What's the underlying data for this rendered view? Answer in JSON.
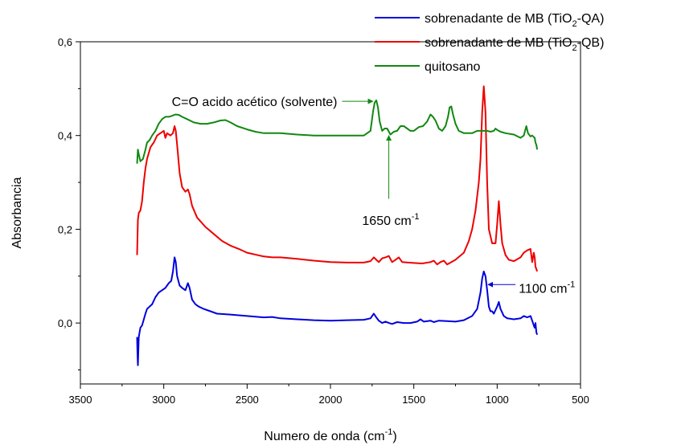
{
  "chart_data": {
    "type": "line",
    "title": "",
    "xlabel": {
      "main": "Numero de onda (cm",
      "sup": "-1",
      "end": ")"
    },
    "ylabel": "Absorbancia",
    "xlim": [
      3500,
      500
    ],
    "ylim": [
      -0.13,
      0.6
    ],
    "x_reversed": true,
    "x_ticks": [
      3500,
      3000,
      2500,
      2000,
      1500,
      1000,
      500
    ],
    "x_tick_labels": [
      "3500",
      "3000",
      "2500",
      "2000",
      "1500",
      "1000",
      "500"
    ],
    "y_ticks": [
      0.0,
      0.2,
      0.4,
      0.6
    ],
    "y_tick_labels": [
      "0,0",
      "0,2",
      "0,4",
      "0,6"
    ],
    "grid": false,
    "legend_position": "top-right",
    "series": [
      {
        "name": {
          "pre": "sobrenadante de MB (TiO",
          "sub": "2",
          "post": "-QA)"
        },
        "color": "#0000dd",
        "points": [
          [
            3160,
            -0.03
          ],
          [
            3158,
            -0.06
          ],
          [
            3155,
            -0.09
          ],
          [
            3150,
            -0.03
          ],
          [
            3140,
            -0.01
          ],
          [
            3130,
            -0.005
          ],
          [
            3110,
            0.02
          ],
          [
            3100,
            0.03
          ],
          [
            3085,
            0.035
          ],
          [
            3070,
            0.04
          ],
          [
            3050,
            0.055
          ],
          [
            3030,
            0.065
          ],
          [
            3010,
            0.07
          ],
          [
            2990,
            0.075
          ],
          [
            2970,
            0.085
          ],
          [
            2955,
            0.09
          ],
          [
            2945,
            0.11
          ],
          [
            2935,
            0.14
          ],
          [
            2928,
            0.13
          ],
          [
            2920,
            0.1
          ],
          [
            2905,
            0.08
          ],
          [
            2890,
            0.075
          ],
          [
            2870,
            0.07
          ],
          [
            2855,
            0.085
          ],
          [
            2845,
            0.075
          ],
          [
            2830,
            0.05
          ],
          [
            2810,
            0.04
          ],
          [
            2790,
            0.035
          ],
          [
            2760,
            0.03
          ],
          [
            2720,
            0.025
          ],
          [
            2680,
            0.02
          ],
          [
            2600,
            0.018
          ],
          [
            2500,
            0.015
          ],
          [
            2400,
            0.012
          ],
          [
            2350,
            0.013
          ],
          [
            2300,
            0.01
          ],
          [
            2200,
            0.008
          ],
          [
            2100,
            0.006
          ],
          [
            2000,
            0.005
          ],
          [
            1900,
            0.006
          ],
          [
            1800,
            0.007
          ],
          [
            1760,
            0.01
          ],
          [
            1740,
            0.02
          ],
          [
            1725,
            0.012
          ],
          [
            1710,
            0.005
          ],
          [
            1690,
            0.0
          ],
          [
            1670,
            0.003
          ],
          [
            1650,
            0.0
          ],
          [
            1630,
            -0.002
          ],
          [
            1600,
            0.002
          ],
          [
            1560,
            0.0
          ],
          [
            1520,
            0.0
          ],
          [
            1480,
            0.003
          ],
          [
            1460,
            0.008
          ],
          [
            1440,
            0.003
          ],
          [
            1400,
            0.005
          ],
          [
            1380,
            0.002
          ],
          [
            1350,
            0.005
          ],
          [
            1300,
            0.004
          ],
          [
            1250,
            0.003
          ],
          [
            1200,
            0.006
          ],
          [
            1150,
            0.015
          ],
          [
            1120,
            0.03
          ],
          [
            1100,
            0.065
          ],
          [
            1090,
            0.095
          ],
          [
            1080,
            0.11
          ],
          [
            1070,
            0.1
          ],
          [
            1060,
            0.07
          ],
          [
            1050,
            0.035
          ],
          [
            1040,
            0.025
          ],
          [
            1030,
            0.025
          ],
          [
            1020,
            0.02
          ],
          [
            1000,
            0.035
          ],
          [
            990,
            0.045
          ],
          [
            980,
            0.03
          ],
          [
            960,
            0.015
          ],
          [
            940,
            0.01
          ],
          [
            900,
            0.008
          ],
          [
            860,
            0.01
          ],
          [
            840,
            0.015
          ],
          [
            820,
            0.012
          ],
          [
            800,
            0.015
          ],
          [
            790,
            0.005
          ],
          [
            780,
            -0.005
          ],
          [
            775,
            -0.01
          ],
          [
            770,
            0.0
          ],
          [
            765,
            -0.02
          ],
          [
            760,
            -0.025
          ]
        ]
      },
      {
        "name": {
          "pre": "sobrenadante de MB (TiO",
          "sub": "2",
          "post": "-QB)"
        },
        "color": "#ee0000",
        "points": [
          [
            3160,
            0.145
          ],
          [
            3155,
            0.22
          ],
          [
            3150,
            0.235
          ],
          [
            3140,
            0.24
          ],
          [
            3130,
            0.26
          ],
          [
            3120,
            0.3
          ],
          [
            3110,
            0.33
          ],
          [
            3100,
            0.35
          ],
          [
            3080,
            0.375
          ],
          [
            3060,
            0.385
          ],
          [
            3040,
            0.4
          ],
          [
            3020,
            0.405
          ],
          [
            3000,
            0.41
          ],
          [
            2990,
            0.395
          ],
          [
            2980,
            0.405
          ],
          [
            2960,
            0.4
          ],
          [
            2945,
            0.405
          ],
          [
            2935,
            0.42
          ],
          [
            2928,
            0.41
          ],
          [
            2920,
            0.38
          ],
          [
            2905,
            0.32
          ],
          [
            2890,
            0.29
          ],
          [
            2870,
            0.28
          ],
          [
            2855,
            0.285
          ],
          [
            2845,
            0.275
          ],
          [
            2830,
            0.25
          ],
          [
            2800,
            0.225
          ],
          [
            2750,
            0.205
          ],
          [
            2700,
            0.19
          ],
          [
            2650,
            0.175
          ],
          [
            2600,
            0.165
          ],
          [
            2550,
            0.158
          ],
          [
            2500,
            0.15
          ],
          [
            2400,
            0.142
          ],
          [
            2350,
            0.14
          ],
          [
            2300,
            0.14
          ],
          [
            2200,
            0.137
          ],
          [
            2100,
            0.133
          ],
          [
            2000,
            0.13
          ],
          [
            1900,
            0.129
          ],
          [
            1800,
            0.129
          ],
          [
            1760,
            0.132
          ],
          [
            1740,
            0.14
          ],
          [
            1725,
            0.135
          ],
          [
            1710,
            0.13
          ],
          [
            1690,
            0.138
          ],
          [
            1670,
            0.14
          ],
          [
            1650,
            0.143
          ],
          [
            1630,
            0.13
          ],
          [
            1610,
            0.135
          ],
          [
            1590,
            0.14
          ],
          [
            1570,
            0.13
          ],
          [
            1500,
            0.128
          ],
          [
            1450,
            0.127
          ],
          [
            1400,
            0.13
          ],
          [
            1380,
            0.133
          ],
          [
            1360,
            0.125
          ],
          [
            1340,
            0.13
          ],
          [
            1320,
            0.133
          ],
          [
            1300,
            0.125
          ],
          [
            1250,
            0.135
          ],
          [
            1200,
            0.15
          ],
          [
            1170,
            0.175
          ],
          [
            1150,
            0.2
          ],
          [
            1130,
            0.24
          ],
          [
            1110,
            0.3
          ],
          [
            1100,
            0.35
          ],
          [
            1090,
            0.45
          ],
          [
            1080,
            0.505
          ],
          [
            1070,
            0.45
          ],
          [
            1060,
            0.3
          ],
          [
            1050,
            0.2
          ],
          [
            1030,
            0.17
          ],
          [
            1010,
            0.17
          ],
          [
            1000,
            0.21
          ],
          [
            990,
            0.26
          ],
          [
            980,
            0.21
          ],
          [
            970,
            0.17
          ],
          [
            950,
            0.145
          ],
          [
            930,
            0.135
          ],
          [
            900,
            0.132
          ],
          [
            860,
            0.14
          ],
          [
            840,
            0.15
          ],
          [
            820,
            0.155
          ],
          [
            800,
            0.158
          ],
          [
            790,
            0.13
          ],
          [
            780,
            0.15
          ],
          [
            775,
            0.14
          ],
          [
            770,
            0.12
          ],
          [
            765,
            0.115
          ],
          [
            760,
            0.11
          ]
        ]
      },
      {
        "name": {
          "pre": "quitosano",
          "sub": "",
          "post": ""
        },
        "color": "#118811",
        "points": [
          [
            3160,
            0.34
          ],
          [
            3155,
            0.37
          ],
          [
            3150,
            0.36
          ],
          [
            3140,
            0.345
          ],
          [
            3125,
            0.35
          ],
          [
            3110,
            0.37
          ],
          [
            3100,
            0.385
          ],
          [
            3085,
            0.39
          ],
          [
            3070,
            0.4
          ],
          [
            3050,
            0.41
          ],
          [
            3030,
            0.425
          ],
          [
            3010,
            0.435
          ],
          [
            2990,
            0.44
          ],
          [
            2970,
            0.44
          ],
          [
            2950,
            0.442
          ],
          [
            2930,
            0.445
          ],
          [
            2910,
            0.444
          ],
          [
            2890,
            0.44
          ],
          [
            2860,
            0.435
          ],
          [
            2820,
            0.428
          ],
          [
            2780,
            0.425
          ],
          [
            2740,
            0.425
          ],
          [
            2700,
            0.428
          ],
          [
            2660,
            0.432
          ],
          [
            2630,
            0.433
          ],
          [
            2600,
            0.428
          ],
          [
            2560,
            0.42
          ],
          [
            2500,
            0.413
          ],
          [
            2450,
            0.408
          ],
          [
            2400,
            0.405
          ],
          [
            2350,
            0.405
          ],
          [
            2300,
            0.405
          ],
          [
            2200,
            0.402
          ],
          [
            2100,
            0.4
          ],
          [
            2000,
            0.4
          ],
          [
            1900,
            0.4
          ],
          [
            1800,
            0.4
          ],
          [
            1760,
            0.41
          ],
          [
            1745,
            0.45
          ],
          [
            1735,
            0.47
          ],
          [
            1725,
            0.475
          ],
          [
            1715,
            0.46
          ],
          [
            1705,
            0.43
          ],
          [
            1690,
            0.41
          ],
          [
            1675,
            0.415
          ],
          [
            1660,
            0.415
          ],
          [
            1640,
            0.402
          ],
          [
            1620,
            0.408
          ],
          [
            1600,
            0.41
          ],
          [
            1580,
            0.42
          ],
          [
            1560,
            0.42
          ],
          [
            1540,
            0.415
          ],
          [
            1520,
            0.41
          ],
          [
            1500,
            0.41
          ],
          [
            1470,
            0.418
          ],
          [
            1445,
            0.42
          ],
          [
            1420,
            0.43
          ],
          [
            1400,
            0.445
          ],
          [
            1385,
            0.44
          ],
          [
            1370,
            0.432
          ],
          [
            1350,
            0.415
          ],
          [
            1330,
            0.41
          ],
          [
            1310,
            0.42
          ],
          [
            1295,
            0.44
          ],
          [
            1285,
            0.46
          ],
          [
            1275,
            0.462
          ],
          [
            1265,
            0.445
          ],
          [
            1250,
            0.425
          ],
          [
            1230,
            0.41
          ],
          [
            1200,
            0.405
          ],
          [
            1150,
            0.405
          ],
          [
            1120,
            0.41
          ],
          [
            1100,
            0.41
          ],
          [
            1080,
            0.41
          ],
          [
            1060,
            0.41
          ],
          [
            1040,
            0.408
          ],
          [
            1020,
            0.41
          ],
          [
            1010,
            0.415
          ],
          [
            1000,
            0.412
          ],
          [
            980,
            0.408
          ],
          [
            950,
            0.405
          ],
          [
            900,
            0.402
          ],
          [
            860,
            0.395
          ],
          [
            840,
            0.4
          ],
          [
            825,
            0.42
          ],
          [
            815,
            0.405
          ],
          [
            800,
            0.398
          ],
          [
            790,
            0.4
          ],
          [
            775,
            0.395
          ],
          [
            770,
            0.385
          ],
          [
            765,
            0.38
          ],
          [
            760,
            0.37
          ]
        ]
      }
    ],
    "annotations": [
      {
        "text": "C=O acido acético (solvente)",
        "x": 1930,
        "y": 0.473,
        "arrow_to": [
          1745,
          0.473
        ]
      },
      {
        "text": "1650 cm",
        "sup": "-1",
        "x": 1810,
        "y": 0.22,
        "arrow_from": [
          1650,
          0.265
        ],
        "arrow_to": [
          1650,
          0.4
        ]
      },
      {
        "text": "1100 cm",
        "sup": "-1",
        "x": 870,
        "y": 0.075,
        "arrow_from": [
          890,
          0.082
        ],
        "arrow_to": [
          1055,
          0.082
        ]
      }
    ]
  }
}
